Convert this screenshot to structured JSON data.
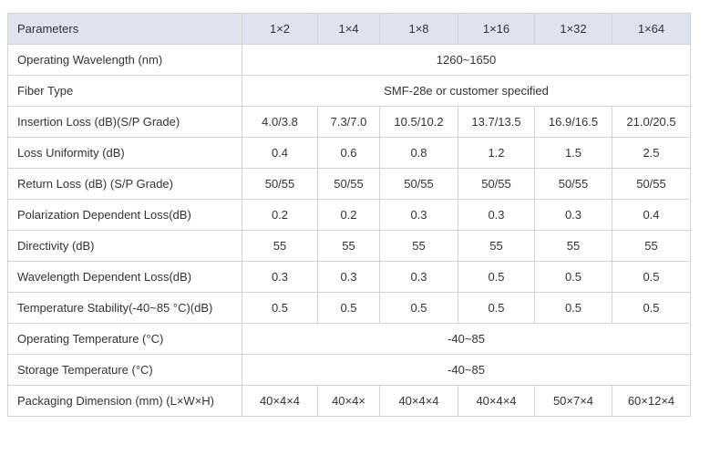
{
  "table": {
    "header": [
      "Parameters",
      "1×2",
      "1×4",
      "1×8",
      "1×16",
      "1×32",
      "1×64"
    ],
    "rows": [
      [
        "Operating Wavelength (nm)",
        "1260~1650"
      ],
      [
        "Fiber Type",
        "SMF-28e or customer specified"
      ],
      [
        "Insertion Loss (dB)(S/P Grade)",
        "4.0/3.8",
        "7.3/7.0",
        "10.5/10.2",
        "13.7/13.5",
        "16.9/16.5",
        "21.0/20.5"
      ],
      [
        "Loss Uniformity (dB)",
        "0.4",
        "0.6",
        "0.8",
        "1.2",
        "1.5",
        "2.5"
      ],
      [
        "Return Loss (dB) (S/P Grade)",
        "50/55",
        "50/55",
        "50/55",
        "50/55",
        "50/55",
        "50/55"
      ],
      [
        "Polarization Dependent Loss(dB)",
        "0.2",
        "0.2",
        "0.3",
        "0.3",
        "0.3",
        "0.4"
      ],
      [
        "Directivity (dB)",
        "55",
        "55",
        "55",
        "55",
        "55",
        "55"
      ],
      [
        "Wavelength Dependent Loss(dB)",
        "0.3",
        "0.3",
        "0.3",
        "0.5",
        "0.5",
        "0.5"
      ],
      [
        "Temperature Stability(-40~85 °C)(dB)",
        "0.5",
        "0.5",
        "0.5",
        "0.5",
        "0.5",
        "0.5"
      ],
      [
        "Operating Temperature (°C)",
        "-40~85"
      ],
      [
        "Storage Temperature (°C)",
        "-40~85"
      ],
      [
        "Packaging Dimension (mm) (L×W×H)",
        "40×4×4",
        "40×4×",
        "40×4×4",
        "40×4×4",
        "50×7×4",
        "60×12×4"
      ]
    ]
  }
}
